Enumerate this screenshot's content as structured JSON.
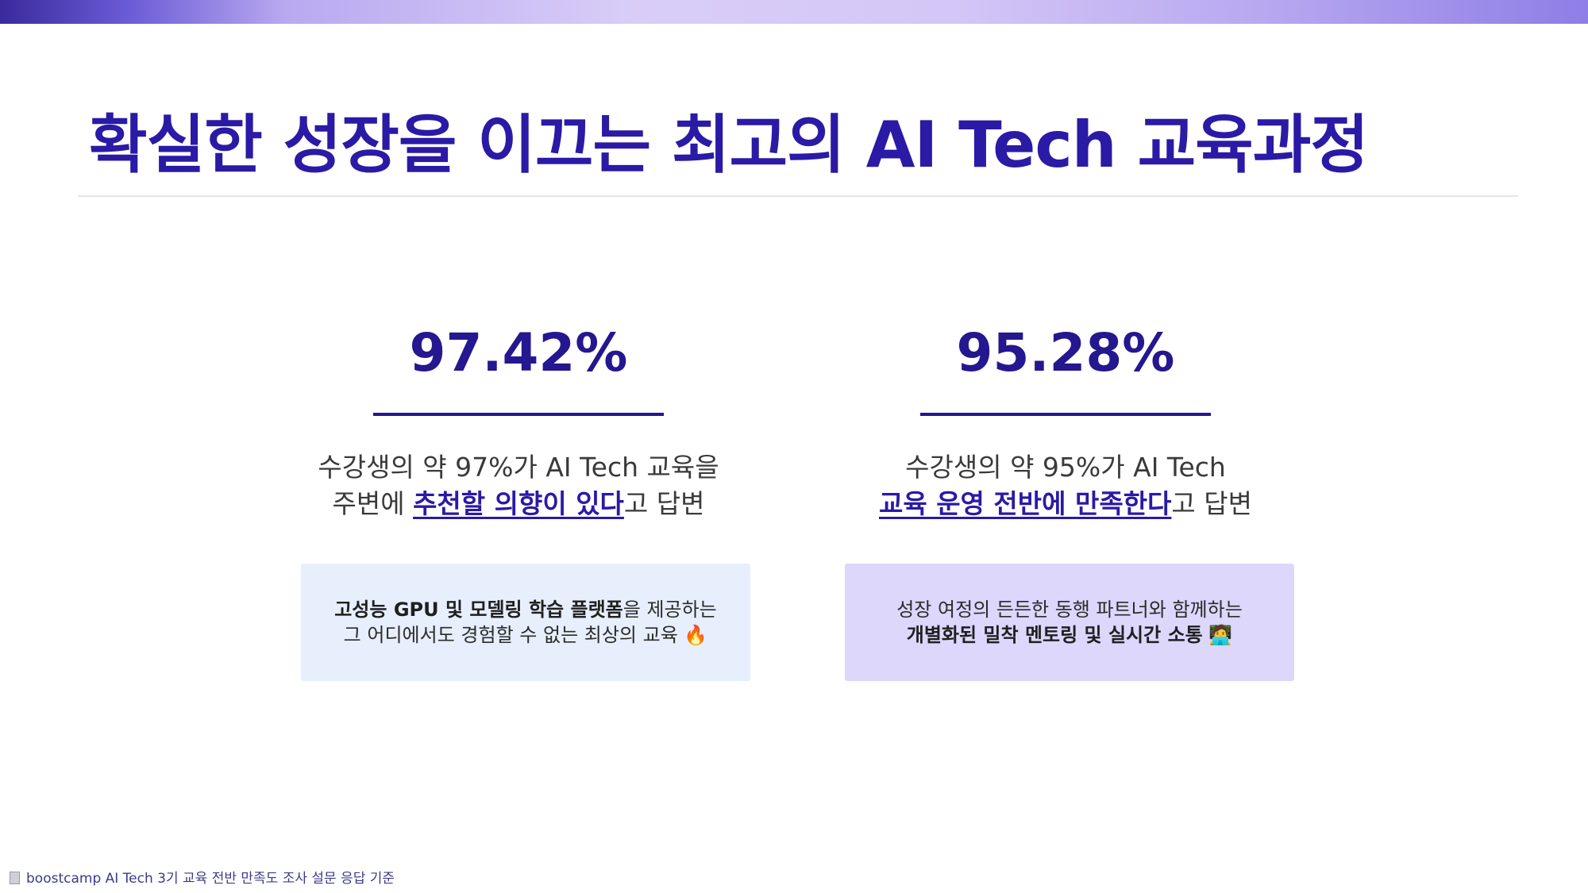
{
  "title": "확실한 성장을 이끄는 최고의 AI Tech 교육과정",
  "stats": [
    {
      "value": "97.42%",
      "desc_line1": "수강생의 약 97%가 AI Tech 교육을",
      "desc_line2_pre": "주변에 ",
      "desc_line2_hl": "추천할 의향이 있다",
      "desc_line2_post": "고 답변",
      "card_line1_bold": "고성능 GPU 및 모델링 학습 플랫폼",
      "card_line1_rest": "을 제공하는",
      "card_line2": "그 어디에서도 경험할 수 없는 최상의 교육 🔥"
    },
    {
      "value": "95.28%",
      "desc_line1": "수강생의 약 95%가 AI Tech",
      "desc_line2_hl": "교육 운영 전반에 만족한다",
      "desc_line2_post": "고 답변",
      "card_line1": "성장 여정의 든든한 동행 파트너와 함께하는",
      "card_line2_bold": "개별화된 밀착 멘토링 및 실시간 소통",
      "card_line2_emoji": " 🧑‍💻"
    }
  ],
  "footer": {
    "icon": "document-icon",
    "text": "boostcamp AI Tech 3기 교육 전반 만족도 조사 설문 응답 기준"
  },
  "colors": {
    "title": "#2a1aa6",
    "stat": "#24178f",
    "card_left_bg": "#e6effb",
    "card_right_bg": "#dcd7fb"
  }
}
